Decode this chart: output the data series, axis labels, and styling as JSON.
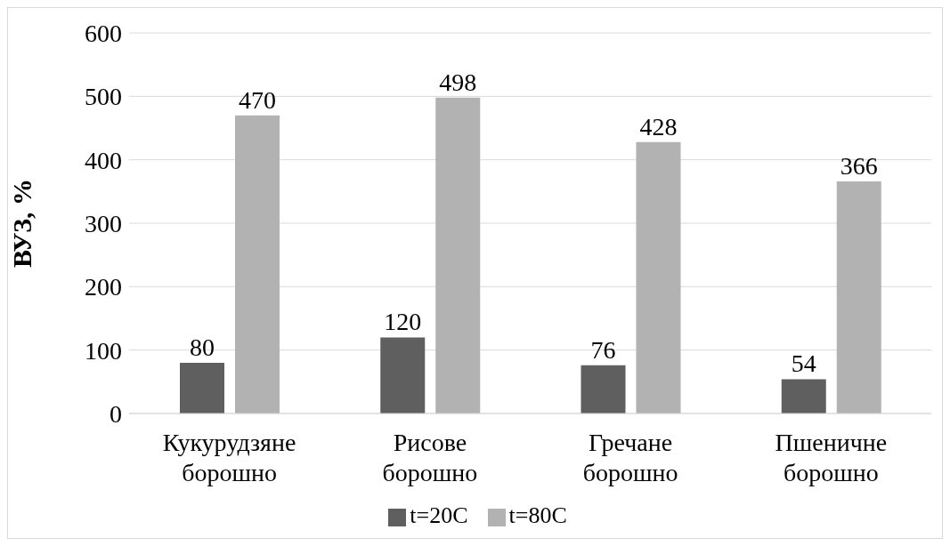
{
  "chart_data": {
    "type": "bar",
    "ylabel": "ВУЗ, %",
    "categories": [
      "Кукурудзяне борошно",
      "Рисове борошно",
      "Гречане борошно",
      "Пшеничне борошно"
    ],
    "series": [
      {
        "name": "t=20C",
        "color": "#5f5f5f",
        "values": [
          80,
          120,
          76,
          54
        ]
      },
      {
        "name": "t=80C",
        "color": "#b2b2b2",
        "values": [
          470,
          498,
          428,
          366
        ]
      }
    ],
    "ylim": [
      0,
      600
    ],
    "yticks": [
      0,
      100,
      200,
      300,
      400,
      500,
      600
    ],
    "grid": "y",
    "legend": "bottom",
    "data_labels": true
  }
}
